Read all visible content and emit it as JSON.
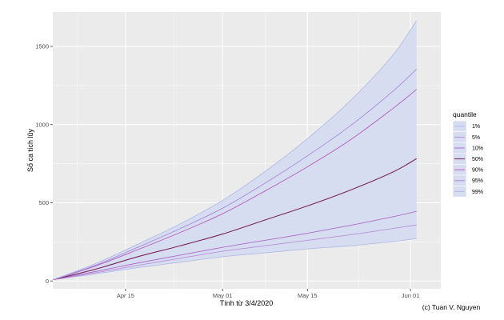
{
  "chart_data": {
    "type": "line",
    "xlabel": "Tính từ 3/4/2020",
    "ylabel": "Số ca tích lũy",
    "x_ticks": [
      "Apr 15",
      "May 01",
      "May 15",
      "Jun 01"
    ],
    "y_ticks": [
      0,
      500,
      1000,
      1500
    ],
    "xlim": [
      "2020-04-03",
      "2020-06-06"
    ],
    "ylim": [
      -50,
      1720
    ],
    "x": [
      "2020-04-03",
      "2020-04-10",
      "2020-04-17",
      "2020-04-24",
      "2020-05-01",
      "2020-05-08",
      "2020-05-15",
      "2020-05-22",
      "2020-05-29",
      "2020-06-02"
    ],
    "band": {
      "lower_series": "1%",
      "upper_series": "99%",
      "fill_color": "#d7ddf1"
    },
    "series": [
      {
        "name": "1%",
        "color": "#b3bbe8",
        "values": [
          8,
          45,
          85,
          120,
          155,
          180,
          205,
          225,
          252,
          272
        ]
      },
      {
        "name": "5%",
        "color": "#b98ed8",
        "values": [
          8,
          52,
          100,
          145,
          190,
          225,
          260,
          295,
          335,
          358
        ]
      },
      {
        "name": "10%",
        "color": "#b06ac8",
        "values": [
          8,
          60,
          115,
          165,
          215,
          260,
          305,
          355,
          410,
          445
        ]
      },
      {
        "name": "50%",
        "color": "#7a2460",
        "values": [
          8,
          75,
          155,
          225,
          300,
          390,
          480,
          580,
          695,
          782
        ]
      },
      {
        "name": "90%",
        "color": "#b55cb8",
        "values": [
          8,
          95,
          200,
          310,
          430,
          575,
          730,
          900,
          1100,
          1225
        ]
      },
      {
        "name": "95%",
        "color": "#a888d8",
        "values": [
          8,
          100,
          215,
          335,
          465,
          625,
          800,
          990,
          1210,
          1355
        ]
      },
      {
        "name": "99%",
        "color": "#b3bbe8",
        "values": [
          8,
          110,
          235,
          365,
          515,
          700,
          910,
          1150,
          1440,
          1665
        ]
      }
    ],
    "legend": {
      "title": "quantile",
      "position": "right",
      "entries": [
        "1%",
        "5%",
        "10%",
        "50%",
        "90%",
        "95%",
        "99%"
      ]
    },
    "grid": true,
    "panel_background": "#ebebeb"
  },
  "credit": "(c) Tuan V. Nguyen"
}
